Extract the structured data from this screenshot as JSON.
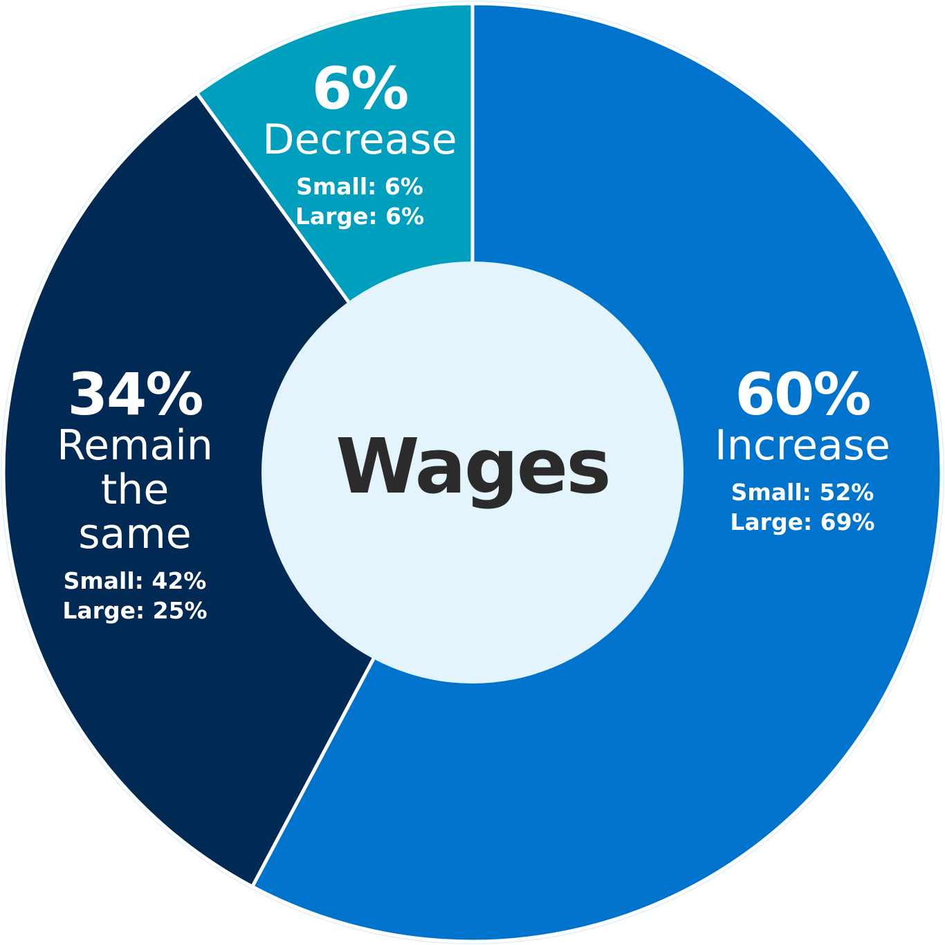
{
  "chart_data": {
    "type": "pie",
    "title": "Wages",
    "donut": true,
    "slices": [
      {
        "label": "Increase",
        "value": 60,
        "value_label": "60%",
        "small": "Small: 52%",
        "large": "Large: 69%",
        "color": "#0074CC"
      },
      {
        "label": "Remain the same",
        "value": 34,
        "value_label": "34%",
        "small": "Small: 42%",
        "large": "Large: 25%",
        "color": "#002A54"
      },
      {
        "label": "Decrease",
        "value": 6,
        "value_label": "6%",
        "small": "Small: 6%",
        "large": "Large: 6%",
        "color": "#009FBE"
      }
    ],
    "center_color": "#E3F4FC",
    "legend": "none"
  }
}
